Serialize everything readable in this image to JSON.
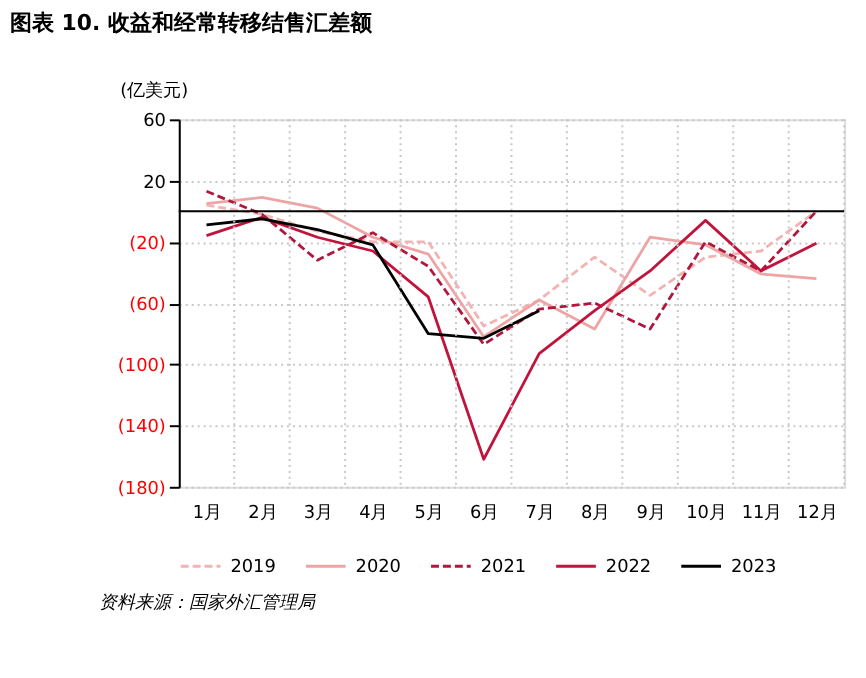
{
  "chart_data": {
    "type": "line",
    "title": "图表 10. 收益和经常转移结售汇差额",
    "ylabel": "(亿美元)",
    "categories": [
      "1月",
      "2月",
      "3月",
      "4月",
      "5月",
      "6月",
      "7月",
      "8月",
      "9月",
      "10月",
      "11月",
      "12月"
    ],
    "series": [
      {
        "name": "2019",
        "color": "#f4b3b3",
        "line_style": "dashed",
        "values": [
          4,
          -2,
          -13,
          -20,
          -20,
          -75,
          -58,
          -30,
          -55,
          -30,
          -26,
          0
        ]
      },
      {
        "name": "2020",
        "color": "#eea4a4",
        "line_style": "solid",
        "values": [
          5,
          9,
          2,
          -17,
          -28,
          -82,
          -58,
          -77,
          -17,
          -22,
          -41,
          -44
        ]
      },
      {
        "name": "2021",
        "color": "#b0173c",
        "line_style": "dashed",
        "values": [
          13,
          -2,
          -32,
          -14,
          -36,
          -87,
          -64,
          -60,
          -77,
          -20,
          -39,
          0
        ]
      },
      {
        "name": "2022",
        "color": "#c0143c",
        "line_style": "solid",
        "values": [
          -16,
          -4,
          -17,
          -26,
          -56,
          -162,
          -93,
          -65,
          -39,
          -6,
          -39,
          -21
        ]
      },
      {
        "name": "2023",
        "color": "#000000",
        "line_style": "solid",
        "values": [
          -9,
          -5,
          -12,
          -22,
          -80,
          -83,
          -65,
          null,
          null,
          null,
          null,
          null
        ]
      }
    ],
    "ylim": [
      -180,
      60
    ],
    "yticks": [
      60,
      20,
      {
        "value": -20,
        "label": "(20)"
      },
      {
        "value": -60,
        "label": "(60)"
      },
      {
        "value": -100,
        "label": "(100)"
      },
      {
        "value": -140,
        "label": "(140)"
      },
      {
        "value": -180,
        "label": "(180)"
      }
    ],
    "ref_lines": [
      {
        "axis": "y",
        "value": 0,
        "color": "#000000"
      }
    ],
    "grid": true,
    "legend": "bottom",
    "marker": "none",
    "annotations": [
      "资料来源：国家外汇管理局"
    ]
  }
}
